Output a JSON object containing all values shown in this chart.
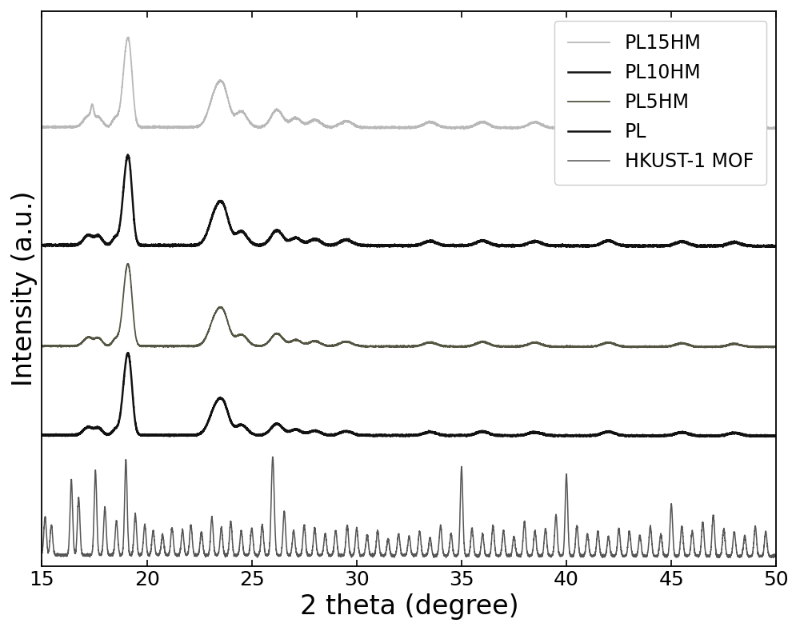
{
  "title": "",
  "xlabel": "2 theta (degree)",
  "ylabel": "Intensity (a.u.)",
  "xlim": [
    15,
    50
  ],
  "legend_labels": [
    "PL15HM",
    "PL10HM",
    "PL5HM",
    "PL",
    "HKUST-1 MOF"
  ],
  "colors_plot": [
    "#b8b8b8",
    "#111111",
    "#555544",
    "#111111",
    "#555555"
  ],
  "linewidths": [
    1.3,
    1.8,
    1.3,
    1.8,
    1.1
  ],
  "offsets": [
    2.55,
    1.85,
    1.25,
    0.72,
    0.0
  ],
  "scale_factors": [
    0.55,
    0.55,
    0.5,
    0.5,
    0.6
  ],
  "background_color": "#ffffff",
  "tick_fontsize": 18,
  "label_fontsize": 24,
  "legend_fontsize": 17
}
